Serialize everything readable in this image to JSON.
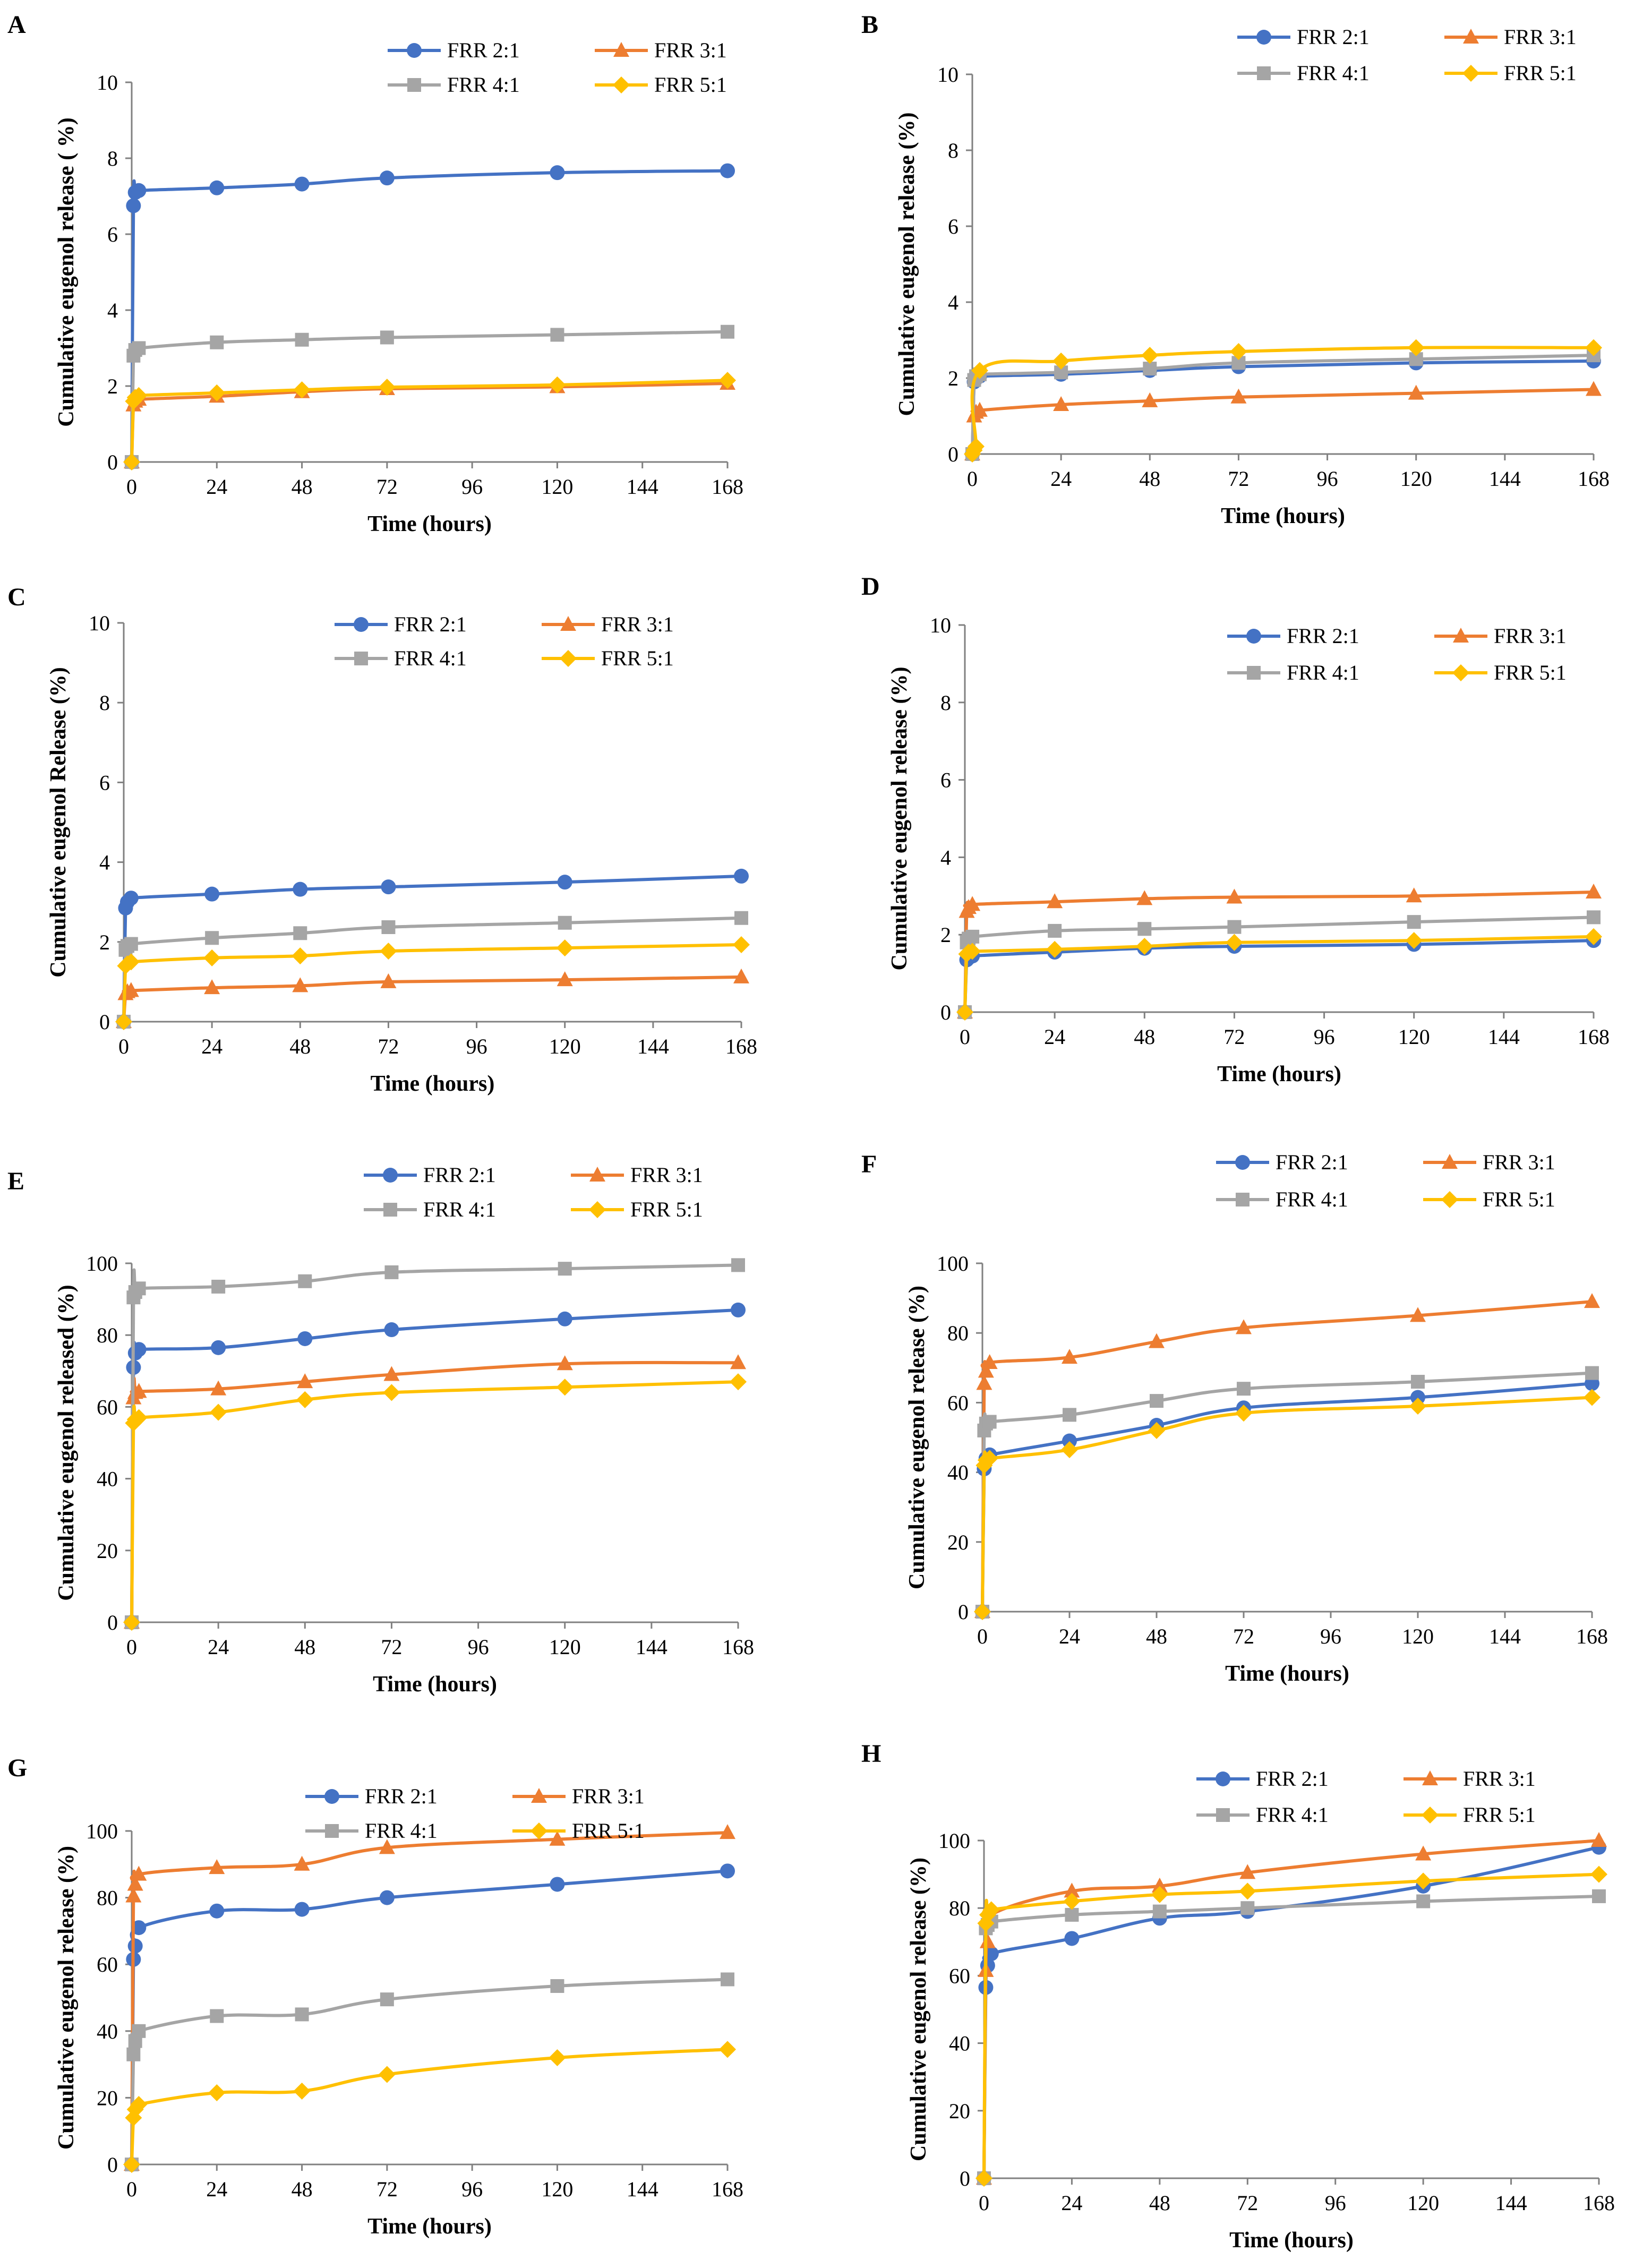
{
  "figure_title": "Cumulative eugenol release profiles, panels A-H",
  "colors": {
    "FRR 2:1": "#4472C4",
    "FRR 3:1": "#ED7D31",
    "FRR 4:1": "#A5A5A5",
    "FRR 5:1": "#FFC000",
    "axis": "#808080",
    "text": "#000000"
  },
  "chart_data": [
    {
      "panel": "A",
      "type": "line",
      "title": "",
      "xlabel": "Time (hours)",
      "ylabel": "Cumulative eugenol release ( %)",
      "xlim": [
        0,
        168
      ],
      "ylim": [
        0,
        10
      ],
      "xticks": [
        0,
        24,
        48,
        72,
        96,
        120,
        144,
        168
      ],
      "yticks": [
        0,
        2,
        4,
        6,
        8,
        10
      ],
      "x": [
        0,
        0.5,
        1,
        2,
        24,
        48,
        72,
        120,
        168
      ],
      "series": [
        {
          "name": "FRR 2:1",
          "marker": "circle",
          "values": [
            0,
            6.75,
            7.1,
            7.15,
            7.22,
            7.32,
            7.48,
            7.62,
            7.67
          ]
        },
        {
          "name": "FRR 3:1",
          "marker": "triangle",
          "values": [
            0,
            1.5,
            1.6,
            1.65,
            1.73,
            1.85,
            1.93,
            1.98,
            2.07
          ]
        },
        {
          "name": "FRR 4:1",
          "marker": "square",
          "values": [
            0,
            2.8,
            2.95,
            3.0,
            3.15,
            3.22,
            3.28,
            3.35,
            3.43
          ]
        },
        {
          "name": "FRR 5:1",
          "marker": "diamond",
          "values": [
            0,
            1.6,
            1.7,
            1.75,
            1.82,
            1.9,
            1.97,
            2.03,
            2.15
          ]
        }
      ]
    },
    {
      "panel": "B",
      "type": "line",
      "title": "",
      "xlabel": "Time (hours)",
      "ylabel": "Cumulative eugenol release (%)",
      "xlim": [
        0,
        168
      ],
      "ylim": [
        0,
        10
      ],
      "xticks": [
        0,
        24,
        48,
        72,
        96,
        120,
        144,
        168
      ],
      "yticks": [
        0,
        2,
        4,
        6,
        8,
        10
      ],
      "x": [
        0,
        0.5,
        1,
        2,
        24,
        48,
        72,
        120,
        168
      ],
      "series": [
        {
          "name": "FRR 2:1",
          "marker": "circle",
          "values": [
            0,
            1.9,
            2.0,
            2.05,
            2.1,
            2.2,
            2.3,
            2.4,
            2.45
          ]
        },
        {
          "name": "FRR 3:1",
          "marker": "triangle",
          "values": [
            0,
            1.0,
            1.1,
            1.15,
            1.3,
            1.4,
            1.5,
            1.6,
            1.7
          ]
        },
        {
          "name": "FRR 4:1",
          "marker": "square",
          "values": [
            0,
            1.95,
            2.05,
            2.1,
            2.15,
            2.25,
            2.4,
            2.5,
            2.6
          ]
        },
        {
          "name": "FRR 5:1",
          "marker": "diamond",
          "values": [
            0,
            0.1,
            0.2,
            2.2,
            2.45,
            2.6,
            2.7,
            2.8,
            2.8
          ]
        }
      ]
    },
    {
      "panel": "C",
      "type": "line",
      "title": "",
      "xlabel": "Time (hours)",
      "ylabel": "Cumulative eugenol Release (%)",
      "xlim": [
        0,
        168
      ],
      "ylim": [
        0,
        10
      ],
      "xticks": [
        0,
        24,
        48,
        72,
        96,
        120,
        144,
        168
      ],
      "yticks": [
        0,
        2,
        4,
        6,
        8,
        10
      ],
      "x": [
        0,
        0.5,
        1,
        2,
        24,
        48,
        72,
        120,
        168
      ],
      "series": [
        {
          "name": "FRR 2:1",
          "marker": "circle",
          "values": [
            0,
            2.85,
            3.0,
            3.1,
            3.2,
            3.32,
            3.38,
            3.5,
            3.65
          ]
        },
        {
          "name": "FRR 3:1",
          "marker": "triangle",
          "values": [
            0,
            0.7,
            0.75,
            0.78,
            0.85,
            0.9,
            1.0,
            1.05,
            1.12
          ]
        },
        {
          "name": "FRR 4:1",
          "marker": "square",
          "values": [
            0,
            1.8,
            1.9,
            1.95,
            2.1,
            2.22,
            2.37,
            2.48,
            2.6
          ]
        },
        {
          "name": "FRR 5:1",
          "marker": "diamond",
          "values": [
            0,
            1.4,
            1.45,
            1.5,
            1.6,
            1.65,
            1.77,
            1.85,
            1.93
          ]
        }
      ]
    },
    {
      "panel": "D",
      "type": "line",
      "title": "",
      "xlabel": "Time (hours)",
      "ylabel": "Cumulative eugenol release (%)",
      "xlim": [
        0,
        168
      ],
      "ylim": [
        0,
        10
      ],
      "xticks": [
        0,
        24,
        48,
        72,
        96,
        120,
        144,
        168
      ],
      "yticks": [
        0,
        2,
        4,
        6,
        8,
        10
      ],
      "x": [
        0,
        0.5,
        1,
        2,
        24,
        48,
        72,
        120,
        168
      ],
      "series": [
        {
          "name": "FRR 2:1",
          "marker": "circle",
          "values": [
            0,
            1.35,
            1.4,
            1.45,
            1.55,
            1.65,
            1.7,
            1.75,
            1.85
          ]
        },
        {
          "name": "FRR 3:1",
          "marker": "triangle",
          "values": [
            0,
            2.6,
            2.7,
            2.78,
            2.85,
            2.93,
            2.97,
            3.0,
            3.1
          ]
        },
        {
          "name": "FRR 4:1",
          "marker": "square",
          "values": [
            0,
            1.8,
            1.9,
            1.95,
            2.1,
            2.15,
            2.2,
            2.33,
            2.45
          ]
        },
        {
          "name": "FRR 5:1",
          "marker": "diamond",
          "values": [
            0,
            1.5,
            1.55,
            1.57,
            1.62,
            1.7,
            1.8,
            1.85,
            1.95
          ]
        }
      ]
    },
    {
      "panel": "E",
      "type": "line",
      "title": "",
      "xlabel": "Time (hours)",
      "ylabel": "Cumulative eugenol released (%)",
      "xlim": [
        0,
        168
      ],
      "ylim": [
        0,
        100
      ],
      "xticks": [
        0,
        24,
        48,
        72,
        96,
        120,
        144,
        168
      ],
      "yticks": [
        0,
        20,
        40,
        60,
        80,
        100
      ],
      "x": [
        0,
        0.5,
        1,
        2,
        24,
        48,
        72,
        120,
        168
      ],
      "series": [
        {
          "name": "FRR 2:1",
          "marker": "circle",
          "values": [
            0,
            71,
            75,
            76,
            76.5,
            79,
            81.5,
            84.5,
            87
          ]
        },
        {
          "name": "FRR 3:1",
          "marker": "triangle",
          "values": [
            0,
            62.5,
            64,
            64.3,
            65,
            67,
            69,
            72,
            72.3
          ]
        },
        {
          "name": "FRR 4:1",
          "marker": "square",
          "values": [
            0,
            90.5,
            92,
            93,
            93.5,
            95,
            97.5,
            98.5,
            99.5
          ]
        },
        {
          "name": "FRR 5:1",
          "marker": "diamond",
          "values": [
            0,
            55.5,
            56.5,
            57,
            58.5,
            62,
            64,
            65.5,
            67
          ]
        }
      ]
    },
    {
      "panel": "F",
      "type": "line",
      "title": "",
      "xlabel": "Time (hours)",
      "ylabel": "Cumulative eugenol release (%)",
      "xlim": [
        0,
        168
      ],
      "ylim": [
        0,
        100
      ],
      "xticks": [
        0,
        24,
        48,
        72,
        96,
        120,
        144,
        168
      ],
      "yticks": [
        0,
        20,
        40,
        60,
        80,
        100
      ],
      "x": [
        0,
        0.5,
        1,
        2,
        24,
        48,
        72,
        120,
        168
      ],
      "series": [
        {
          "name": "FRR 2:1",
          "marker": "circle",
          "values": [
            0,
            41,
            44,
            45,
            49,
            53.5,
            58.5,
            61.5,
            65.5
          ]
        },
        {
          "name": "FRR 3:1",
          "marker": "triangle",
          "values": [
            0,
            65.5,
            69,
            71.5,
            73,
            77.5,
            81.5,
            85,
            89
          ]
        },
        {
          "name": "FRR 4:1",
          "marker": "square",
          "values": [
            0,
            52,
            54,
            54.5,
            56.5,
            60.5,
            64,
            66,
            68.5
          ]
        },
        {
          "name": "FRR 5:1",
          "marker": "diamond",
          "values": [
            0,
            42,
            43.5,
            44,
            46.5,
            52,
            57,
            59,
            61.5
          ]
        }
      ]
    },
    {
      "panel": "G",
      "type": "line",
      "title": "",
      "xlabel": "Time (hours)",
      "ylabel": "Cumulative eugenol release (%)",
      "xlim": [
        0,
        168
      ],
      "ylim": [
        0,
        100
      ],
      "xticks": [
        0,
        24,
        48,
        72,
        96,
        120,
        144,
        168
      ],
      "yticks": [
        0,
        20,
        40,
        60,
        80,
        100
      ],
      "x": [
        0,
        0.5,
        1,
        2,
        24,
        48,
        72,
        120,
        168
      ],
      "series": [
        {
          "name": "FRR 2:1",
          "marker": "circle",
          "values": [
            0,
            61.5,
            65.5,
            71,
            76,
            76.5,
            80,
            84,
            88
          ]
        },
        {
          "name": "FRR 3:1",
          "marker": "triangle",
          "values": [
            0,
            80.5,
            84,
            87,
            89,
            90,
            95,
            97.5,
            99.5
          ]
        },
        {
          "name": "FRR 4:1",
          "marker": "square",
          "values": [
            0,
            33,
            37,
            40,
            44.5,
            45,
            49.5,
            53.5,
            55.5
          ]
        },
        {
          "name": "FRR 5:1",
          "marker": "diamond",
          "values": [
            0,
            14,
            16.5,
            18,
            21.5,
            22,
            27,
            32,
            34.5
          ]
        }
      ]
    },
    {
      "panel": "H",
      "type": "line",
      "title": "",
      "xlabel": "Time (hours)",
      "ylabel": "Cumulative eugenol release (%)",
      "xlim": [
        0,
        168
      ],
      "ylim": [
        0,
        100
      ],
      "xticks": [
        0,
        24,
        48,
        72,
        96,
        120,
        144,
        168
      ],
      "yticks": [
        0,
        20,
        40,
        60,
        80,
        100
      ],
      "x": [
        0,
        0.5,
        1,
        2,
        24,
        48,
        72,
        120,
        168
      ],
      "series": [
        {
          "name": "FRR 2:1",
          "marker": "circle",
          "values": [
            0,
            56.5,
            63,
            66.5,
            71,
            77,
            79,
            86.5,
            98
          ]
        },
        {
          "name": "FRR 3:1",
          "marker": "triangle",
          "values": [
            0,
            61.5,
            70,
            78,
            85,
            86.5,
            90.5,
            96,
            100
          ]
        },
        {
          "name": "FRR 4:1",
          "marker": "square",
          "values": [
            0,
            74,
            75,
            76,
            78,
            79,
            80,
            82,
            83.5
          ]
        },
        {
          "name": "FRR 5:1",
          "marker": "diamond",
          "values": [
            0,
            75.5,
            78,
            79.5,
            82,
            84,
            85,
            88,
            90
          ]
        }
      ]
    }
  ]
}
